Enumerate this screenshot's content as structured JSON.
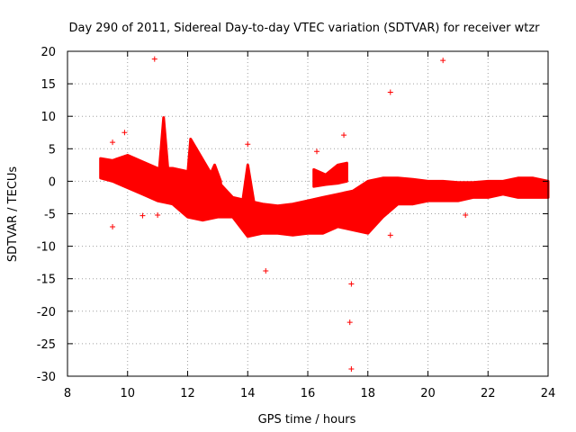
{
  "chart_data": {
    "type": "scatter",
    "title": "Day 290 of 2011, Sidereal Day-to-day VTEC variation (SDTVAR) for receiver wtzr",
    "xlabel": "GPS time / hours",
    "ylabel": "SDTVAR / TECUs",
    "xlim": [
      8,
      24
    ],
    "ylim": [
      -30,
      20
    ],
    "xticks": [
      8,
      10,
      12,
      14,
      16,
      18,
      20,
      22,
      24
    ],
    "yticks": [
      -30,
      -25,
      -20,
      -15,
      -10,
      -5,
      0,
      5,
      10,
      15,
      20
    ],
    "grid": true,
    "marker": "+",
    "color": "#ff0000",
    "bands": [
      {
        "name": "main-band",
        "x": [
          9.1,
          9.5,
          10.0,
          10.5,
          11.0,
          11.5,
          12.0,
          12.5,
          13.0,
          13.5,
          14.0,
          14.5,
          15.0,
          15.5,
          16.0,
          16.5,
          17.0,
          17.5,
          18.0,
          18.5,
          19.0,
          19.5,
          20.0,
          20.5,
          21.0,
          21.5,
          22.0,
          22.5,
          23.0,
          23.5,
          24.0
        ],
        "upper": [
          3.5,
          3.2,
          4.0,
          3.0,
          2.0,
          2.0,
          1.5,
          1.0,
          0.0,
          -2.5,
          -3.0,
          -3.5,
          -3.8,
          -3.5,
          -3.0,
          -2.5,
          -2.0,
          -1.5,
          0.0,
          0.5,
          0.5,
          0.3,
          0.0,
          0.0,
          -0.2,
          -0.2,
          0.0,
          0.0,
          0.5,
          0.5,
          0.0
        ],
        "lower": [
          0.5,
          0.0,
          -1.0,
          -2.0,
          -3.0,
          -3.5,
          -5.5,
          -6.0,
          -5.5,
          -5.5,
          -8.5,
          -8.0,
          -8.0,
          -8.3,
          -8.0,
          -8.0,
          -7.0,
          -7.5,
          -8.0,
          -5.5,
          -3.5,
          -3.5,
          -3.0,
          -3.0,
          -3.0,
          -2.5,
          -2.5,
          -2.0,
          -2.5,
          -2.5,
          -2.5
        ]
      },
      {
        "name": "spike-11",
        "x": [
          11.05,
          11.2,
          11.35
        ],
        "upper": [
          1.5,
          9.8,
          1.5
        ],
        "lower": [
          -1.0,
          -1.0,
          -1.0
        ]
      },
      {
        "name": "spike-12",
        "x": [
          12.0,
          12.1,
          12.8
        ],
        "upper": [
          1.0,
          6.5,
          1.0
        ],
        "lower": [
          -2.0,
          -2.0,
          -2.0
        ]
      },
      {
        "name": "spike-14",
        "x": [
          13.85,
          14.0,
          14.2
        ],
        "upper": [
          -2.5,
          2.5,
          -3.0
        ],
        "lower": [
          -5.0,
          -5.0,
          -5.0
        ]
      },
      {
        "name": "spike-13",
        "x": [
          12.7,
          12.9,
          13.1
        ],
        "upper": [
          0.5,
          2.5,
          0.0
        ],
        "lower": [
          -2.0,
          -2.0,
          -2.0
        ]
      },
      {
        "name": "island-17",
        "x": [
          16.2,
          16.6,
          17.0,
          17.3
        ],
        "upper": [
          1.8,
          1.0,
          2.5,
          2.8
        ],
        "lower": [
          -0.8,
          -0.5,
          -0.3,
          0.0
        ]
      }
    ],
    "outliers": [
      {
        "x": 9.5,
        "y": 6.0
      },
      {
        "x": 9.5,
        "y": -7.0
      },
      {
        "x": 9.9,
        "y": 7.5
      },
      {
        "x": 10.5,
        "y": -5.3
      },
      {
        "x": 10.9,
        "y": 18.8
      },
      {
        "x": 11.0,
        "y": -5.2
      },
      {
        "x": 14.0,
        "y": 5.7
      },
      {
        "x": 14.6,
        "y": -13.8
      },
      {
        "x": 16.3,
        "y": 4.6
      },
      {
        "x": 17.2,
        "y": 7.1
      },
      {
        "x": 17.45,
        "y": -15.8
      },
      {
        "x": 17.4,
        "y": -21.7
      },
      {
        "x": 17.45,
        "y": -28.9
      },
      {
        "x": 18.75,
        "y": 13.7
      },
      {
        "x": 18.75,
        "y": -8.3
      },
      {
        "x": 20.5,
        "y": 18.6
      },
      {
        "x": 21.25,
        "y": -5.2
      }
    ]
  }
}
